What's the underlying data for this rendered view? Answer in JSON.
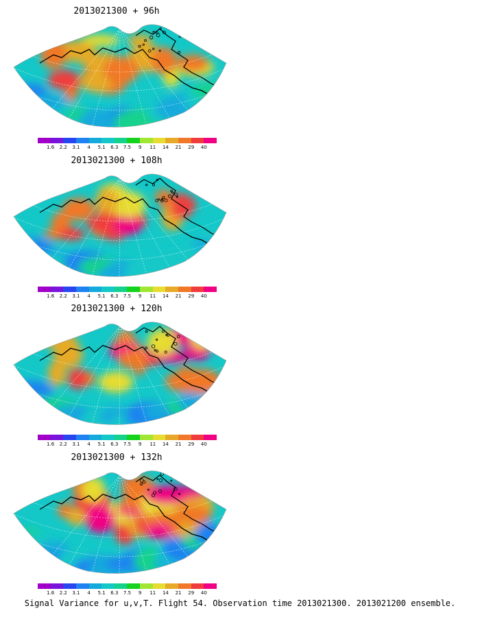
{
  "panels": [
    {
      "title": "2013021300 + 96h",
      "intensity": 0.55
    },
    {
      "title": "2013021300 + 108h",
      "intensity": 0.62
    },
    {
      "title": "2013021300 + 120h",
      "intensity": 0.7
    },
    {
      "title": "2013021300 + 132h",
      "intensity": 0.8
    }
  ],
  "colorbar": {
    "labels": [
      "1.6",
      "2.2",
      "3.1",
      "4",
      "5.1",
      "6.3",
      "7.5",
      "9",
      "11",
      "14",
      "21",
      "29",
      "40"
    ],
    "colors": [
      "#a000c8",
      "#7814dc",
      "#2846f0",
      "#1e82f0",
      "#14aadc",
      "#14c8c8",
      "#14d28c",
      "#14d21e",
      "#a0e632",
      "#e6dc32",
      "#e6aa28",
      "#f07828",
      "#f03c3c",
      "#f00082"
    ]
  },
  "footer": "Signal Variance for u,v,T. Flight 54. Observation time 2013021300. 2013021200 ensemble."
}
